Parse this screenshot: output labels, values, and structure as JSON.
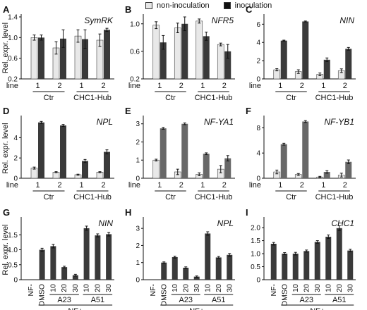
{
  "figure": {
    "legend": [
      {
        "label": "non-inoculation",
        "color": "#e6e6e6"
      },
      {
        "label": "inoculation",
        "color": "#111111"
      }
    ],
    "colors": {
      "light_bar": "#e8e8e8",
      "dark_bar": "#3a3a3a",
      "medium_bar": "#686868",
      "axis": "#111111"
    },
    "common_labels": {
      "ylabel": "Rel. expr. level",
      "line_word": "line",
      "groups_top": [
        "Ctr",
        "CHC1-Hub"
      ],
      "nf_plus": "NF+",
      "sub_a23": "A23",
      "sub_a51": "A51"
    }
  },
  "chart_data": [
    {
      "panel": "A",
      "type": "bar",
      "title": "SymRK",
      "ylim": [
        0.2,
        1.4
      ],
      "yticks": [
        "0.2",
        "0.6",
        "1.0",
        "1.4"
      ],
      "categories": [
        "1",
        "2",
        "1",
        "2"
      ],
      "groups": [
        "Ctr",
        "CHC1-Hub"
      ],
      "series": [
        {
          "name": "non-inoculation",
          "values": [
            1.0,
            0.8,
            1.03,
            0.95
          ],
          "errors": [
            0.05,
            0.12,
            0.12,
            0.12
          ]
        },
        {
          "name": "inoculation",
          "values": [
            1.0,
            0.98,
            0.97,
            1.15
          ],
          "errors": [
            0.05,
            0.17,
            0.18,
            0.03
          ]
        }
      ]
    },
    {
      "panel": "B",
      "type": "bar",
      "title": "NFR5",
      "ylim": [
        0.2,
        1.1
      ],
      "yticks": [
        "0.2",
        "0.6",
        "1.0"
      ],
      "categories": [
        "1",
        "2",
        "1",
        "2"
      ],
      "groups": [
        "Ctr",
        "CHC1-Hub"
      ],
      "series": [
        {
          "name": "non-inoculation",
          "values": [
            0.98,
            0.94,
            1.04,
            0.7
          ],
          "errors": [
            0.05,
            0.07,
            0.03,
            0.02
          ]
        },
        {
          "name": "inoculation",
          "values": [
            0.73,
            1.0,
            0.82,
            0.6
          ],
          "errors": [
            0.1,
            0.1,
            0.06,
            0.1
          ]
        }
      ]
    },
    {
      "panel": "C",
      "type": "bar",
      "title": "NIN",
      "ylim": [
        0,
        6.8
      ],
      "yticks": [
        "0",
        "2",
        "4",
        "6"
      ],
      "categories": [
        "1",
        "2",
        "1",
        "2"
      ],
      "groups": [
        "Ctr",
        "CHC1-Hub"
      ],
      "series": [
        {
          "name": "non-inoculation",
          "values": [
            1.0,
            0.8,
            0.5,
            0.9
          ],
          "errors": [
            0.12,
            0.2,
            0.15,
            0.2
          ]
        },
        {
          "name": "inoculation",
          "values": [
            4.2,
            6.3,
            2.1,
            3.3
          ],
          "errors": [
            0.05,
            0.05,
            0.2,
            0.15
          ]
        }
      ]
    },
    {
      "panel": "D",
      "type": "bar",
      "title": "NPL",
      "ylim": [
        0,
        5.9
      ],
      "yticks": [
        "0",
        "2",
        "4"
      ],
      "categories": [
        "1",
        "2",
        "1",
        "2"
      ],
      "groups": [
        "Ctr",
        "CHC1-Hub"
      ],
      "series": [
        {
          "name": "non-inoculation",
          "values": [
            1.0,
            0.6,
            0.35,
            0.6
          ],
          "errors": [
            0.1,
            0.05,
            0.05,
            0.05
          ]
        },
        {
          "name": "inoculation",
          "values": [
            5.5,
            5.2,
            1.7,
            2.6
          ],
          "errors": [
            0.1,
            0.1,
            0.15,
            0.2
          ]
        }
      ]
    },
    {
      "panel": "E",
      "type": "bar",
      "title": "NF-YA1",
      "ylim": [
        0,
        3.3
      ],
      "yticks": [
        "0",
        "1",
        "2",
        "3"
      ],
      "categories": [
        "1",
        "2",
        "1",
        "2"
      ],
      "groups": [
        "Ctr",
        "CHC1-Hub"
      ],
      "series": [
        {
          "name": "non-inoculation",
          "values": [
            1.0,
            0.35,
            0.22,
            0.5
          ],
          "errors": [
            0.05,
            0.15,
            0.08,
            0.2
          ]
        },
        {
          "name": "inoculation",
          "values": [
            2.75,
            3.0,
            1.35,
            1.1
          ],
          "errors": [
            0.05,
            0.05,
            0.05,
            0.15
          ]
        }
      ]
    },
    {
      "panel": "F",
      "type": "bar",
      "title": "NF-YB1",
      "ylim": [
        0,
        9.5
      ],
      "yticks": [
        "0",
        "4",
        "8"
      ],
      "categories": [
        "1",
        "2",
        "1",
        "2"
      ],
      "groups": [
        "Ctr",
        "CHC1-Hub"
      ],
      "series": [
        {
          "name": "non-inoculation",
          "values": [
            1.0,
            0.6,
            0.2,
            0.5
          ],
          "errors": [
            0.3,
            0.15,
            0.1,
            0.3
          ]
        },
        {
          "name": "inoculation",
          "values": [
            5.4,
            9.0,
            1.0,
            2.6
          ],
          "errors": [
            0.15,
            0.15,
            0.2,
            0.3
          ]
        }
      ]
    },
    {
      "panel": "G",
      "type": "bar",
      "title": "NIN",
      "ylim": [
        0,
        2.0
      ],
      "yticks": [
        "0",
        "0.5",
        "1.0",
        "1.5"
      ],
      "categories": [
        "NF-",
        "DMSO",
        "10",
        "20",
        "30",
        "10",
        "20",
        "30"
      ],
      "values": [
        0.0,
        1.0,
        1.12,
        0.42,
        0.15,
        1.72,
        1.48,
        1.52
      ],
      "errors": [
        0.0,
        0.05,
        0.06,
        0.03,
        0.03,
        0.07,
        0.05,
        0.06
      ]
    },
    {
      "panel": "H",
      "type": "bar",
      "title": "NPL",
      "ylim": [
        0,
        3.5
      ],
      "yticks": [
        "0",
        "1",
        "2",
        "3"
      ],
      "categories": [
        "NF-",
        "DMSO",
        "10",
        "20",
        "30",
        "10",
        "20",
        "30"
      ],
      "values": [
        0.0,
        1.0,
        1.32,
        0.7,
        0.18,
        2.7,
        1.3,
        1.45
      ],
      "errors": [
        0.0,
        0.04,
        0.06,
        0.05,
        0.04,
        0.1,
        0.06,
        0.08
      ]
    },
    {
      "panel": "I",
      "type": "bar",
      "title": "CHC1",
      "ylim": [
        0,
        2.3
      ],
      "yticks": [
        "0",
        "0.5",
        "1.0",
        "1.5",
        "2.0"
      ],
      "categories": [
        "NF-",
        "DMSO",
        "10",
        "20",
        "30",
        "10",
        "20",
        "30"
      ],
      "values": [
        1.38,
        1.0,
        1.0,
        1.1,
        1.45,
        1.65,
        1.98,
        1.12
      ],
      "errors": [
        0.05,
        0.04,
        0.05,
        0.04,
        0.05,
        0.07,
        0.09,
        0.05
      ]
    }
  ]
}
